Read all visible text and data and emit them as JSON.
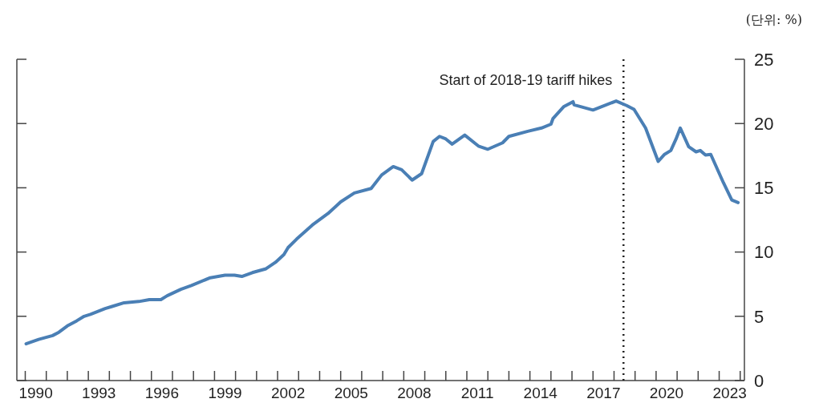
{
  "chart_data": {
    "type": "line",
    "annotations": [
      "(단위: %)"
    ],
    "xlim": [
      1989.6,
      2024.2
    ],
    "xticks": [
      {
        "value": 1990,
        "label": null
      },
      {
        "value": 1991,
        "label": null
      },
      {
        "value": 1992,
        "label": null
      },
      {
        "value": 1993,
        "label": null
      },
      {
        "value": 1994,
        "label": null
      },
      {
        "value": 1995,
        "label": null
      },
      {
        "value": 1996,
        "label": null
      },
      {
        "value": 1997,
        "label": null
      },
      {
        "value": 1998,
        "label": null
      },
      {
        "value": 1999,
        "label": null
      },
      {
        "value": 2000,
        "label": null
      },
      {
        "value": 2001,
        "label": null
      },
      {
        "value": 2002,
        "label": null
      },
      {
        "value": 2003,
        "label": null
      },
      {
        "value": 2004,
        "label": null
      },
      {
        "value": 2005,
        "label": null
      },
      {
        "value": 2006,
        "label": null
      },
      {
        "value": 2007,
        "label": null
      },
      {
        "value": 2008,
        "label": null
      },
      {
        "value": 2009,
        "label": null
      },
      {
        "value": 2010,
        "label": null
      },
      {
        "value": 2011,
        "label": null
      },
      {
        "value": 2012,
        "label": null
      },
      {
        "value": 2013,
        "label": null
      },
      {
        "value": 2014,
        "label": null
      },
      {
        "value": 2015,
        "label": null
      },
      {
        "value": 2016,
        "label": null
      },
      {
        "value": 2017,
        "label": null
      },
      {
        "value": 2018,
        "label": null
      },
      {
        "value": 2019,
        "label": null
      },
      {
        "value": 2020,
        "label": null
      },
      {
        "value": 2021,
        "label": null
      },
      {
        "value": 2022,
        "label": null
      },
      {
        "value": 2023,
        "label": null
      },
      {
        "value": 2024,
        "label": null
      },
      {
        "value": 1990.5,
        "label": "1990"
      },
      {
        "value": 1993.5,
        "label": "1993"
      },
      {
        "value": 1996.5,
        "label": "1996"
      },
      {
        "value": 1999.5,
        "label": "1999"
      },
      {
        "value": 2002.5,
        "label": "2002"
      },
      {
        "value": 2005.5,
        "label": "2005"
      },
      {
        "value": 2008.5,
        "label": "2008"
      },
      {
        "value": 2011.5,
        "label": "2011"
      },
      {
        "value": 2014.5,
        "label": "2014"
      },
      {
        "value": 2017.5,
        "label": "2017"
      },
      {
        "value": 2020.5,
        "label": "2020"
      },
      {
        "value": 2023.5,
        "label": "2023"
      }
    ],
    "ylim": [
      0,
      25
    ],
    "yticks": [
      0,
      5,
      10,
      15,
      20,
      25
    ],
    "grid": false,
    "line_style": "solid",
    "ref_lines": [
      {
        "axis": "x",
        "value": 2018.45,
        "label": "Start of 2018-19 tariff hikes",
        "line_style": "dotted",
        "color": "#222222"
      }
    ],
    "series": [
      {
        "color": "#4a7fb5",
        "x": [
          1990.04,
          1990.64,
          1991.3,
          1991.6,
          1992.0,
          1992.45,
          1992.8,
          1993.1,
          1993.8,
          1994.1,
          1994.7,
          1995.4,
          1995.9,
          1996.45,
          1996.75,
          1997.4,
          1997.9,
          1998.8,
          1999.5,
          1999.95,
          2000.3,
          2000.8,
          2001.45,
          2001.9,
          2002.3,
          2002.5,
          2002.9,
          2003.65,
          2004.4,
          2005.0,
          2005.65,
          2006.45,
          2006.95,
          2007.5,
          2007.9,
          2008.4,
          2008.85,
          2009.4,
          2009.7,
          2010.0,
          2010.3,
          2010.9,
          2011.55,
          2012.0,
          2012.7,
          2013.0,
          2013.9,
          2014.55,
          2015.0,
          2015.1,
          2015.6,
          2016.05,
          2016.1,
          2017.0,
          2018.1,
          2018.6,
          2018.95,
          2019.5,
          2020.1,
          2020.4,
          2020.7,
          2020.95,
          2021.15,
          2021.55,
          2021.9,
          2022.1,
          2022.35,
          2022.6,
          2023.2,
          2023.6,
          2023.9
        ],
        "values": [
          2.86,
          3.2,
          3.5,
          3.76,
          4.25,
          4.65,
          5.0,
          5.15,
          5.6,
          5.75,
          6.05,
          6.15,
          6.3,
          6.3,
          6.6,
          7.1,
          7.4,
          8.0,
          8.2,
          8.2,
          8.1,
          8.4,
          8.7,
          9.2,
          9.8,
          10.35,
          11.0,
          12.1,
          13.0,
          13.9,
          14.6,
          14.95,
          16.0,
          16.65,
          16.4,
          15.6,
          16.1,
          18.6,
          19.0,
          18.8,
          18.4,
          19.1,
          18.25,
          18.0,
          18.5,
          19.0,
          19.4,
          19.65,
          19.95,
          20.4,
          21.3,
          21.7,
          21.45,
          21.05,
          21.75,
          21.4,
          21.1,
          19.65,
          17.05,
          17.6,
          17.9,
          18.8,
          19.65,
          18.2,
          17.8,
          17.9,
          17.55,
          17.6,
          15.4,
          14.05,
          13.85
        ]
      }
    ]
  }
}
